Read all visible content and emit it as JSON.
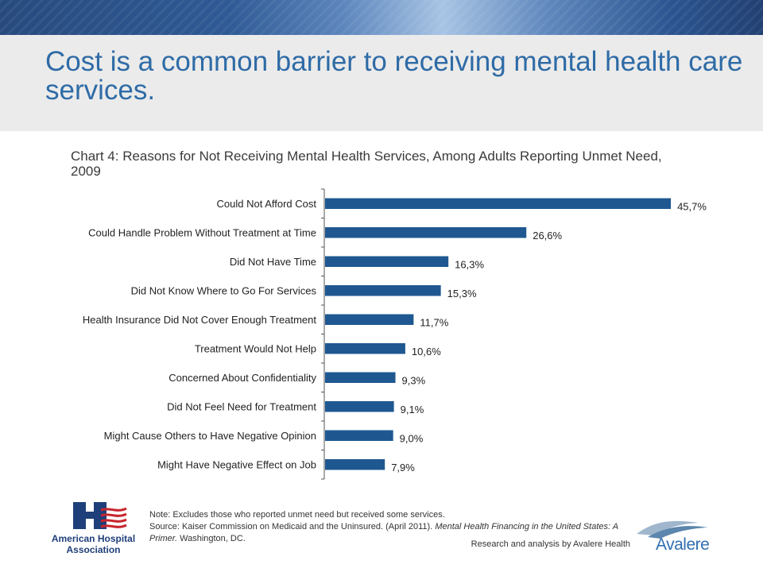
{
  "slide": {
    "title": "Cost is a common barrier to receiving mental health care services.",
    "chart_title": "Chart 4: Reasons for Not Receiving Mental Health Services, Among Adults Reporting Unmet Need, 2009",
    "note_line1": "Note: Excludes those who reported unmet need but received some services.",
    "source_prefix": "Source: Kaiser Commission on Medicaid and the Uninsured. (April 2011). ",
    "source_italic": "Mental Health Financing in the United States: A Primer.",
    "source_suffix": " Washington, DC.",
    "credit": "Research and analysis by Avalere Health",
    "aha_logo_line1": "American Hospital",
    "aha_logo_line2": "Association",
    "avalere_logo_text": "Avalere"
  },
  "colors": {
    "bar": "#1f5891",
    "title": "#2e6ba6",
    "band": "#ebebeb"
  },
  "chart_data": {
    "type": "bar",
    "orientation": "horizontal",
    "categories": [
      "Could Not Afford Cost",
      "Could Handle Problem Without Treatment at Time",
      "Did Not Have Time",
      "Did Not Know Where to Go For Services",
      "Health Insurance Did Not Cover Enough Treatment",
      "Treatment Would Not Help",
      "Concerned About Confidentiality",
      "Did Not Feel Need for Treatment",
      "Might Cause Others to Have Negative Opinion",
      "Might Have Negative Effect on Job"
    ],
    "values": [
      45.7,
      26.6,
      16.3,
      15.3,
      11.7,
      10.6,
      9.3,
      9.1,
      9.0,
      7.9
    ],
    "value_labels": [
      "45,7%",
      "26,6%",
      "16,3%",
      "15,3%",
      "11,7%",
      "10,6%",
      "9,3%",
      "9,1%",
      "9,0%",
      "7,9%"
    ],
    "xlim": [
      0,
      50
    ],
    "grid": false,
    "legend": "none"
  }
}
